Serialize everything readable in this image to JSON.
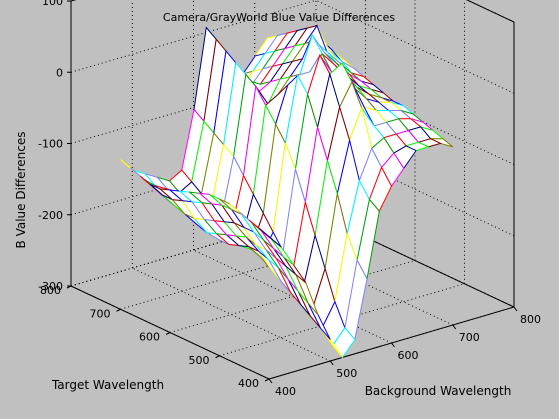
{
  "chart_data": {
    "type": "surface",
    "title": "Camera/GrayWorld Blue Value Differences",
    "xlabel": "Background Wavelength",
    "ylabel": "Target Wavelength",
    "zlabel": "B Value Differences",
    "xlim": [
      400,
      800
    ],
    "ylim": [
      400,
      800
    ],
    "zlim": [
      -300,
      100
    ],
    "x_ticks": [
      "400",
      "500",
      "600",
      "700",
      "800"
    ],
    "y_ticks": [
      "400",
      "500",
      "600",
      "700",
      "800"
    ],
    "z_ticks": [
      "100",
      "0",
      "-100",
      "-200",
      "-300"
    ],
    "grid": true,
    "x": [
      400,
      420,
      440,
      460,
      480,
      500,
      520,
      540,
      560,
      580,
      600,
      620,
      640,
      660,
      680,
      700
    ],
    "y": [
      400,
      420,
      440,
      460,
      480,
      500,
      520,
      540,
      560,
      580,
      600,
      620,
      640,
      660,
      680,
      700
    ],
    "z_rows_note": "rows indexed by target wavelength (y), columns by background wavelength (x)",
    "z": [
      [
        -100,
        -120,
        -150,
        -180,
        -230,
        -270,
        -300,
        -280,
        -200,
        -110,
        -80,
        -60,
        -40,
        -40,
        -40,
        -50
      ],
      [
        -95,
        -115,
        -145,
        -175,
        -220,
        -260,
        -290,
        -270,
        -180,
        -100,
        -60,
        -45,
        -40,
        -40,
        -40,
        -45
      ],
      [
        -90,
        -110,
        -140,
        -170,
        -210,
        -250,
        -270,
        -240,
        -150,
        -80,
        -40,
        -30,
        -30,
        -30,
        -30,
        -40
      ],
      [
        -85,
        -105,
        -135,
        -165,
        -200,
        -240,
        -250,
        -200,
        -100,
        -30,
        10,
        -20,
        -20,
        -20,
        -25,
        -35
      ],
      [
        -80,
        -100,
        -130,
        -160,
        -190,
        -230,
        -230,
        -160,
        -60,
        10,
        40,
        0,
        -10,
        -15,
        -20,
        -30
      ],
      [
        -80,
        -100,
        -130,
        -160,
        -185,
        -220,
        -210,
        -120,
        -20,
        50,
        60,
        20,
        0,
        -10,
        -15,
        -25
      ],
      [
        -80,
        -100,
        -130,
        -155,
        -180,
        -210,
        -190,
        -80,
        20,
        70,
        40,
        30,
        10,
        -5,
        -15,
        -25
      ],
      [
        -85,
        -105,
        -135,
        -160,
        -180,
        -200,
        -170,
        -50,
        40,
        40,
        60,
        40,
        20,
        0,
        -10,
        -20
      ],
      [
        -90,
        -110,
        -140,
        -165,
        -185,
        -195,
        -150,
        -30,
        20,
        30,
        80,
        50,
        30,
        10,
        -5,
        -15
      ],
      [
        -95,
        -115,
        -145,
        -170,
        -190,
        -190,
        -130,
        -10,
        0,
        20,
        40,
        60,
        40,
        20,
        0,
        -10
      ],
      [
        -100,
        -120,
        -150,
        -175,
        -190,
        -180,
        -110,
        10,
        -20,
        10,
        30,
        50,
        70,
        30,
        10,
        -5
      ],
      [
        -105,
        -125,
        -150,
        -170,
        -180,
        -170,
        -90,
        20,
        -10,
        0,
        20,
        40,
        60,
        40,
        20,
        0
      ],
      [
        -105,
        -125,
        -145,
        -160,
        -170,
        -160,
        -80,
        30,
        0,
        -10,
        10,
        30,
        50,
        40,
        20,
        5
      ],
      [
        -100,
        -120,
        -140,
        -150,
        -160,
        -150,
        -70,
        40,
        10,
        -20,
        0,
        20,
        40,
        30,
        15,
        0
      ],
      [
        -95,
        -115,
        -130,
        -140,
        -150,
        -140,
        -60,
        50,
        20,
        -30,
        -10,
        10,
        30,
        20,
        10,
        0
      ],
      [
        -90,
        -110,
        -120,
        -130,
        -140,
        -130,
        -50,
        60,
        30,
        -40,
        -20,
        0,
        20,
        10,
        5,
        0
      ]
    ]
  },
  "colors": {
    "background": "#c0c0c0",
    "axes": "#000000",
    "grid": "#000000",
    "mesh_palette": [
      "#000080",
      "#0000ff",
      "#00a000",
      "#00ff00",
      "#ffff00",
      "#ff0000",
      "#800000",
      "#00ffff",
      "#ff00ff",
      "#808000",
      "#8080ff"
    ]
  }
}
